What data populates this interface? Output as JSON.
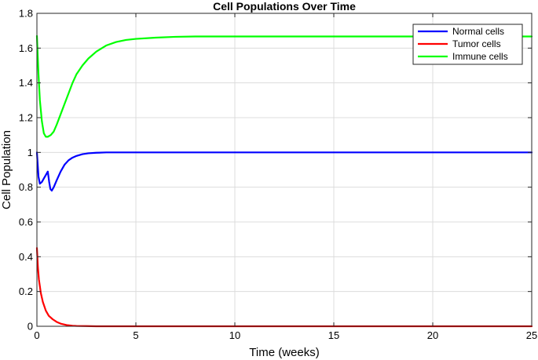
{
  "chart_data": {
    "type": "line",
    "title": "Cell Populations Over Time",
    "xlabel": "Time (weeks)",
    "ylabel": "Cell Population",
    "xlim": [
      0,
      25
    ],
    "ylim": [
      0,
      1.8
    ],
    "xticks": [
      0,
      5,
      10,
      15,
      20,
      25
    ],
    "yticks": [
      0,
      0.2,
      0.4,
      0.6,
      0.8,
      1,
      1.2,
      1.4,
      1.6,
      1.8
    ],
    "grid": true,
    "legend_position": "top-right",
    "series": [
      {
        "name": "Normal cells",
        "color": "#0000ff",
        "x": [
          0,
          0.08,
          0.15,
          0.25,
          0.35,
          0.45,
          0.55,
          0.62,
          0.68,
          0.75,
          0.85,
          1.0,
          1.2,
          1.4,
          1.6,
          1.8,
          2.0,
          2.3,
          2.6,
          3.0,
          3.5,
          4.0,
          5.0,
          7.0,
          10.0,
          15.0,
          20.0,
          25.0
        ],
        "y": [
          1.0,
          0.86,
          0.82,
          0.83,
          0.85,
          0.87,
          0.89,
          0.83,
          0.79,
          0.78,
          0.8,
          0.84,
          0.89,
          0.93,
          0.955,
          0.97,
          0.98,
          0.99,
          0.995,
          0.998,
          1.0,
          1.0,
          1.0,
          1.0,
          1.0,
          1.0,
          1.0,
          1.0
        ]
      },
      {
        "name": "Tumor cells",
        "color": "#ff0000",
        "x": [
          0,
          0.05,
          0.1,
          0.2,
          0.3,
          0.45,
          0.6,
          0.8,
          1.0,
          1.2,
          1.5,
          1.8,
          2.0,
          2.5,
          3.0,
          4.0,
          6.0,
          10.0,
          15.0,
          20.0,
          25.0
        ],
        "y": [
          0.45,
          0.34,
          0.27,
          0.19,
          0.14,
          0.09,
          0.06,
          0.04,
          0.025,
          0.015,
          0.007,
          0.003,
          0.002,
          0.001,
          0.0,
          0.0,
          0.0,
          0.0,
          0.0,
          0.0,
          0.0
        ]
      },
      {
        "name": "Immune cells",
        "color": "#00ff00",
        "x": [
          0,
          0.08,
          0.15,
          0.25,
          0.35,
          0.45,
          0.55,
          0.7,
          0.85,
          1.0,
          1.2,
          1.4,
          1.6,
          1.8,
          2.0,
          2.3,
          2.6,
          3.0,
          3.5,
          4.0,
          4.5,
          5.0,
          6.0,
          7.0,
          8.0,
          10.0,
          15.0,
          20.0,
          25.0
        ],
        "y": [
          1.67,
          1.45,
          1.3,
          1.18,
          1.11,
          1.09,
          1.09,
          1.1,
          1.12,
          1.16,
          1.22,
          1.28,
          1.34,
          1.4,
          1.45,
          1.5,
          1.54,
          1.58,
          1.615,
          1.635,
          1.647,
          1.653,
          1.66,
          1.665,
          1.667,
          1.667,
          1.667,
          1.667,
          1.667
        ]
      }
    ]
  }
}
